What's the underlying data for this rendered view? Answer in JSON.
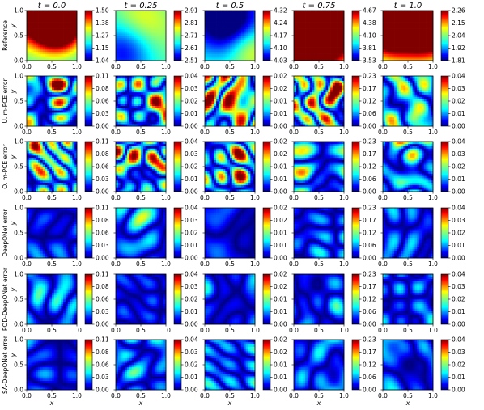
{
  "chart_data": {
    "type": "heatmap",
    "colormap": "jet",
    "time_labels": [
      "t = 0.0",
      "t = 0.25",
      "t = 0.5",
      "t = 0.75",
      "t = 1.0"
    ],
    "xlabel": "x",
    "ylabel": "y",
    "tick_labels": [
      "0.0",
      "0.5",
      "1.0"
    ],
    "xlim": [
      0,
      1
    ],
    "ylim": [
      0,
      1
    ],
    "rows": [
      {
        "label": "Reference",
        "colorbars": [
          [
            "1.04",
            "1.15",
            "1.27",
            "1.38",
            "1.50"
          ],
          [
            "2.51",
            "2.61",
            "2.71",
            "2.81",
            "2.91"
          ],
          [
            "4.03",
            "4.10",
            "4.17",
            "4.24",
            "4.32"
          ],
          [
            "3.53",
            "3.81",
            "4.10",
            "4.38",
            "4.67"
          ],
          [
            "1.81",
            "1.92",
            "2.04",
            "2.15",
            "2.26"
          ]
        ]
      },
      {
        "label": "U. m-PCE error",
        "colorbars": [
          [
            "0.00",
            "0.03",
            "0.06",
            "0.08",
            "0.11"
          ],
          [
            "0.00",
            "0.01",
            "0.02",
            "0.03",
            "0.04"
          ],
          [
            "0.00",
            "0.01",
            "0.01",
            "0.02",
            "0.02"
          ],
          [
            "0.00",
            "0.06",
            "0.12",
            "0.17",
            "0.23"
          ],
          [
            "0.00",
            "0.01",
            "0.02",
            "0.03",
            "0.04"
          ]
        ]
      },
      {
        "label": "O. m-PCE error",
        "colorbars": [
          [
            "0.00",
            "0.03",
            "0.06",
            "0.08",
            "0.11"
          ],
          [
            "0.00",
            "0.01",
            "0.02",
            "0.03",
            "0.04"
          ],
          [
            "0.00",
            "0.01",
            "0.01",
            "0.02",
            "0.02"
          ],
          [
            "0.00",
            "0.06",
            "0.12",
            "0.17",
            "0.23"
          ],
          [
            "0.00",
            "0.01",
            "0.02",
            "0.03",
            "0.04"
          ]
        ]
      },
      {
        "label": "DeepONet error",
        "colorbars": [
          [
            "0.00",
            "0.03",
            "0.06",
            "0.08",
            "0.11"
          ],
          [
            "0.00",
            "0.01",
            "0.02",
            "0.03",
            "0.04"
          ],
          [
            "0.00",
            "0.01",
            "0.01",
            "0.02",
            "0.02"
          ],
          [
            "0.00",
            "0.06",
            "0.12",
            "0.17",
            "0.23"
          ],
          [
            "0.00",
            "0.01",
            "0.02",
            "0.03",
            "0.04"
          ]
        ]
      },
      {
        "label": "POD-DeepONet error",
        "colorbars": [
          [
            "0.00",
            "0.03",
            "0.06",
            "0.08",
            "0.11"
          ],
          [
            "0.00",
            "0.01",
            "0.02",
            "0.03",
            "0.04"
          ],
          [
            "0.00",
            "0.01",
            "0.01",
            "0.02",
            "0.02"
          ],
          [
            "0.00",
            "0.06",
            "0.12",
            "0.17",
            "0.23"
          ],
          [
            "0.00",
            "0.01",
            "0.02",
            "0.03",
            "0.04"
          ]
        ]
      },
      {
        "label": "SA-DeepONet error",
        "colorbars": [
          [
            "0.00",
            "0.03",
            "0.06",
            "0.08",
            "0.11"
          ],
          [
            "0.00",
            "0.01",
            "0.02",
            "0.03",
            "0.04"
          ],
          [
            "0.00",
            "0.01",
            "0.01",
            "0.02",
            "0.02"
          ],
          [
            "0.00",
            "0.06",
            "0.12",
            "0.17",
            "0.23"
          ],
          [
            "0.00",
            "0.01",
            "0.02",
            "0.03",
            "0.04"
          ]
        ]
      }
    ]
  }
}
